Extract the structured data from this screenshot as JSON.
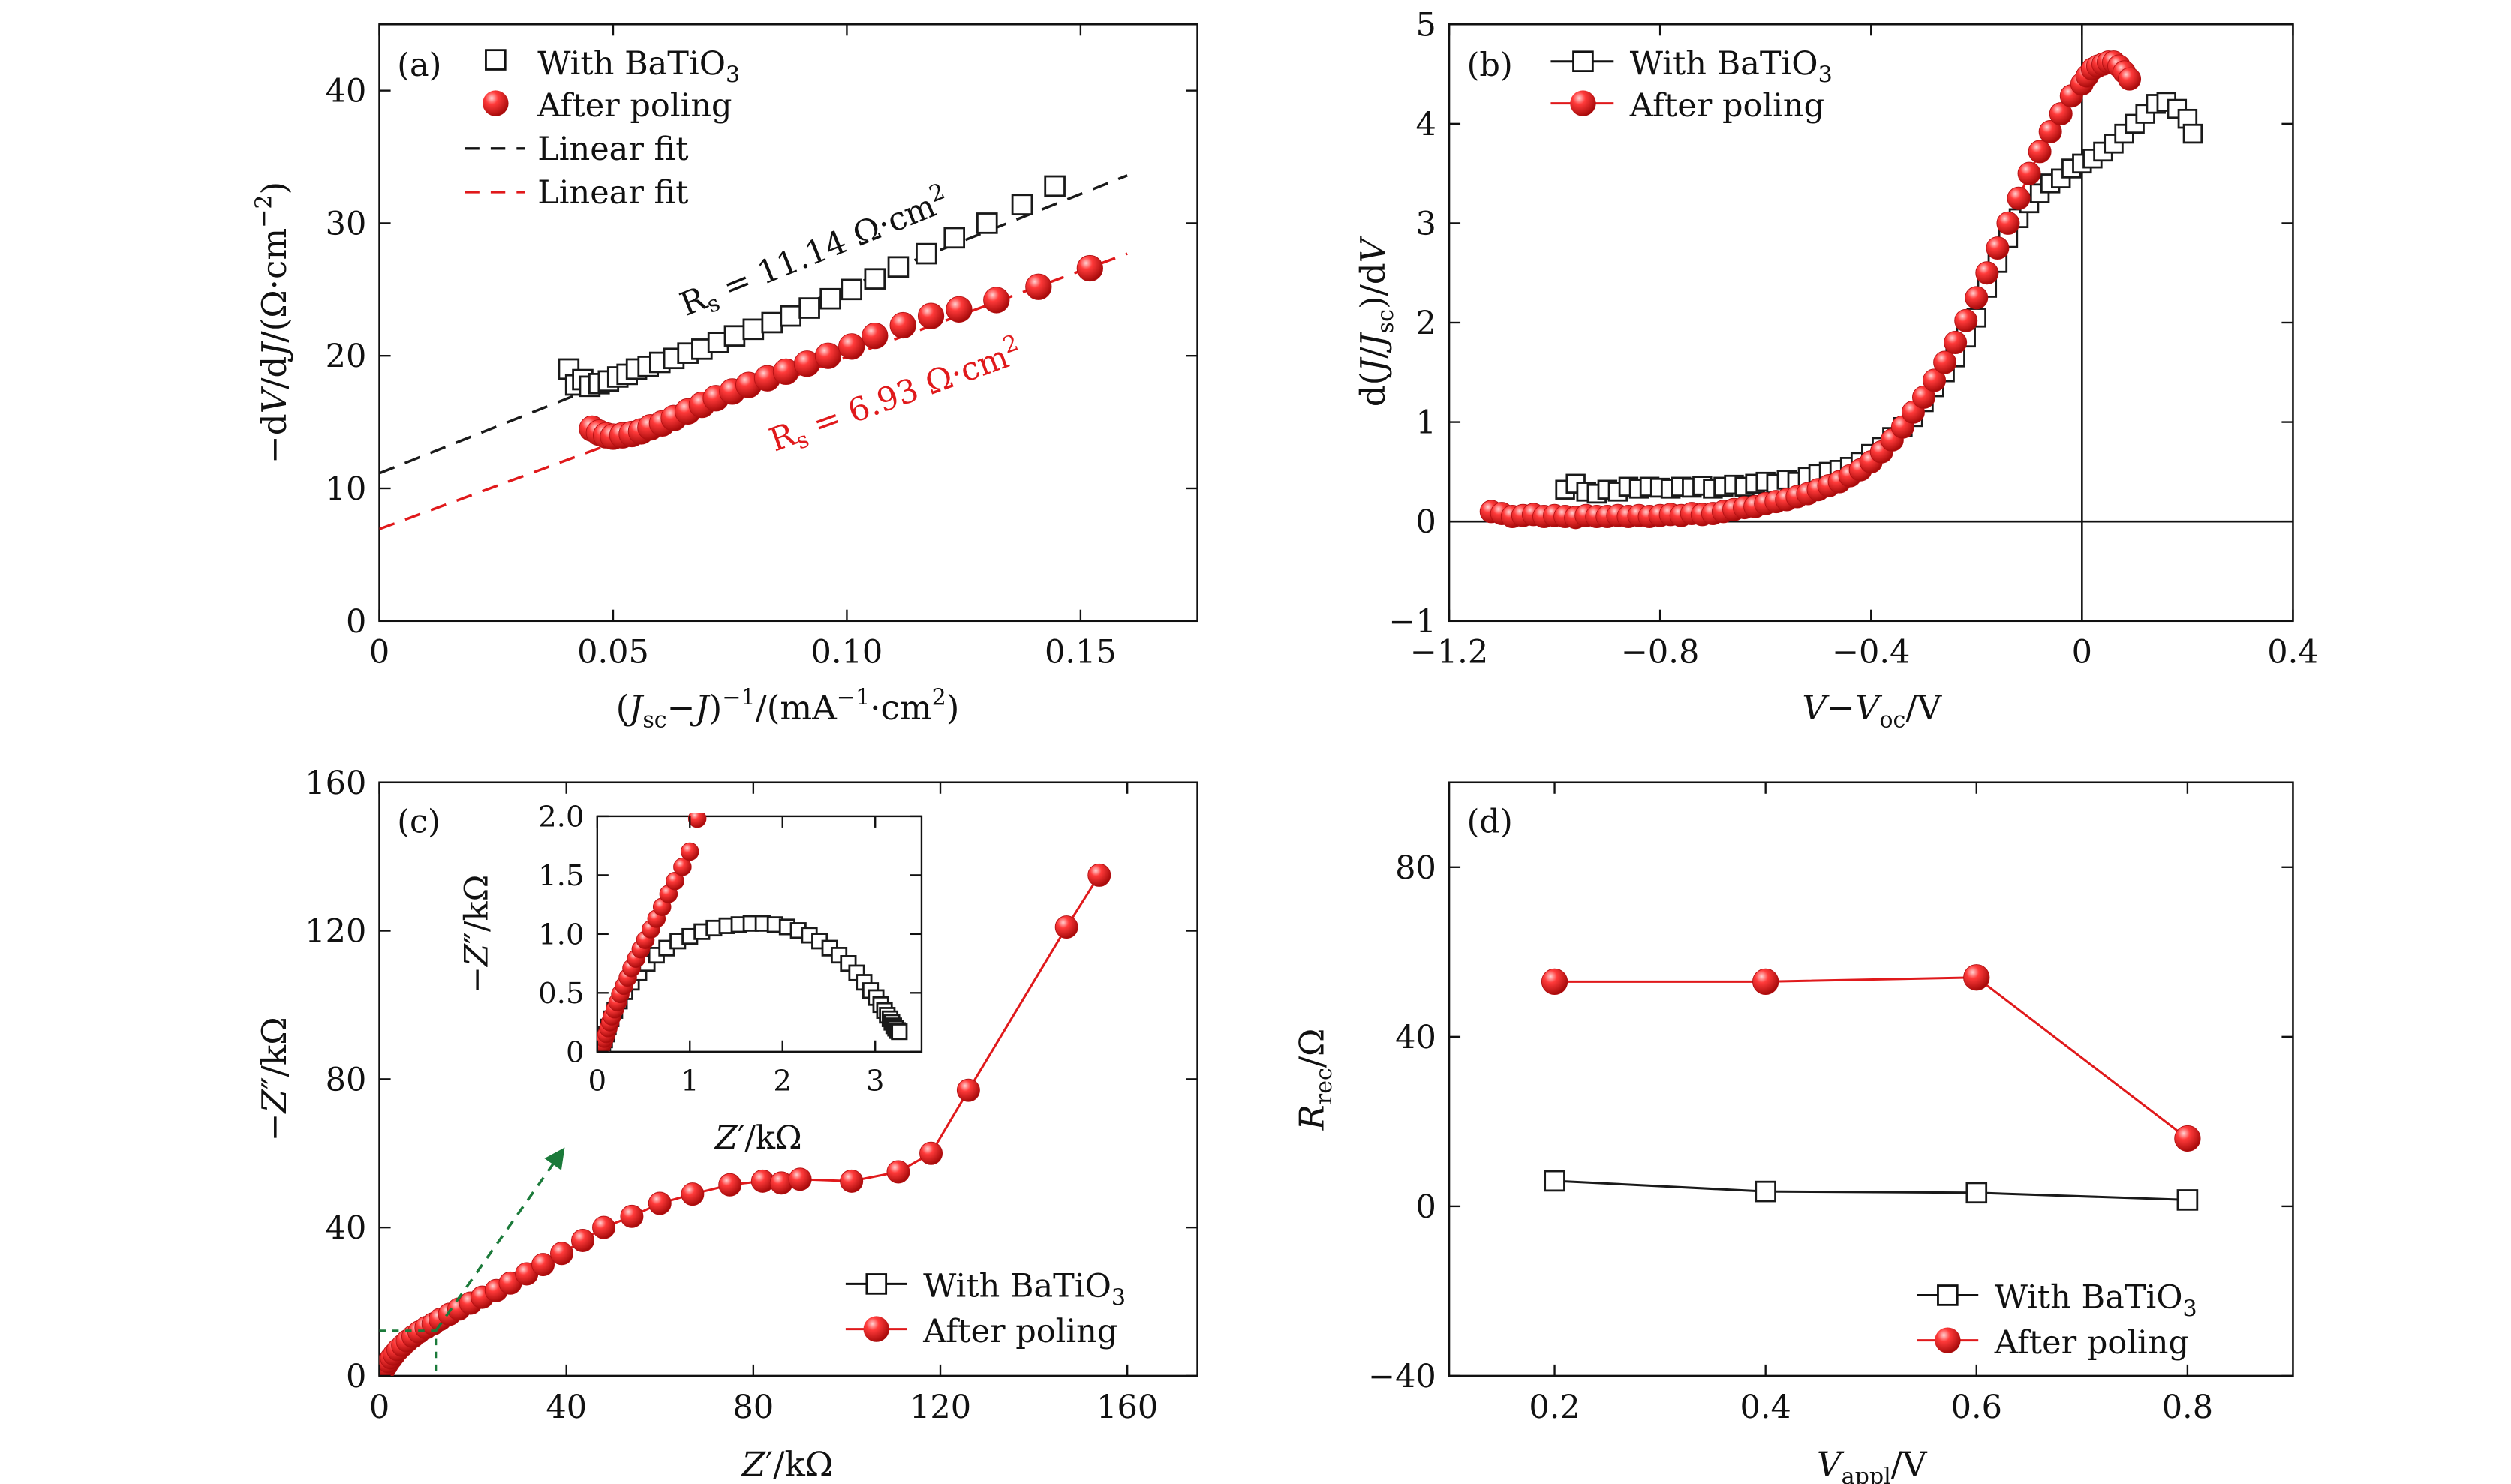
{
  "colors": {
    "black": "#1a1a1a",
    "red": "#e0191b",
    "red_dark": "#b30f12",
    "green": "#1b7a3a"
  },
  "panels": [
    {
      "id": "a",
      "tag": "(a)",
      "xlabel": "(J_sc − J)^−1/(mA^−1·cm^2)",
      "ylabel": "−dV/dJ/(Ω·cm^−2)",
      "xlim": [
        0,
        0.175
      ],
      "ylim": [
        0,
        45
      ],
      "xticks": [
        0,
        0.05,
        0.1,
        0.15
      ],
      "xticklabels": [
        "0",
        "0.05",
        "0.10",
        "0.15"
      ],
      "yticks": [
        0,
        10,
        20,
        30,
        40
      ],
      "yticklabels": [
        "0",
        "10",
        "20",
        "30",
        "40"
      ],
      "legend": [
        "With BaTiO3",
        "After poling",
        "Linear fit",
        "Linear fit"
      ],
      "annotations": [
        "Rs = 11.14 Ω·cm²",
        "Rs = 6.93 Ω·cm²"
      ]
    },
    {
      "id": "b",
      "tag": "(b)",
      "xlabel": "V − V_oc/V",
      "ylabel": "d(J/J_sc)/dV",
      "xlim": [
        -1.2,
        0.4
      ],
      "ylim": [
        -1,
        5
      ],
      "xticks": [
        -1.2,
        -0.8,
        -0.4,
        0,
        0.4
      ],
      "xticklabels": [
        "−1.2",
        "−0.8",
        "−0.4",
        "0",
        "0.4"
      ],
      "yticks": [
        -1,
        0,
        1,
        2,
        3,
        4,
        5
      ],
      "yticklabels": [
        "−1",
        "0",
        "1",
        "2",
        "3",
        "4",
        "5"
      ],
      "legend": [
        "With BaTiO3",
        "After poling"
      ]
    },
    {
      "id": "c",
      "tag": "(c)",
      "xlabel": "Z′/kΩ",
      "ylabel": "−Z″/kΩ",
      "xlim": [
        0,
        175
      ],
      "ylim": [
        0,
        160
      ],
      "xticks": [
        0,
        40,
        80,
        120,
        160
      ],
      "xticklabels": [
        "0",
        "40",
        "80",
        "120",
        "160"
      ],
      "yticks": [
        0,
        40,
        80,
        120,
        160
      ],
      "yticklabels": [
        "0",
        "40",
        "80",
        "120",
        "160"
      ],
      "legend": [
        "With BaTiO3",
        "After poling"
      ],
      "inset": {
        "xlabel": "Z′/kΩ",
        "ylabel": "−Z″/kΩ",
        "xlim": [
          0,
          3.5
        ],
        "ylim": [
          0,
          2.0
        ],
        "xticks": [
          0,
          1,
          2,
          3
        ],
        "xticklabels": [
          "0",
          "1",
          "2",
          "3"
        ],
        "yticks": [
          0,
          0.5,
          1.0,
          1.5,
          2.0
        ],
        "yticklabels": [
          "0",
          "0.5",
          "1.0",
          "1.5",
          "2.0"
        ]
      }
    },
    {
      "id": "d",
      "tag": "(d)",
      "xlabel": "V_appl/V",
      "ylabel": "R_rec/Ω",
      "xlim": [
        0.1,
        0.9
      ],
      "ylim": [
        -40,
        100
      ],
      "xticks": [
        0.2,
        0.4,
        0.6,
        0.8
      ],
      "xticklabels": [
        "0.2",
        "0.4",
        "0.6",
        "0.8"
      ],
      "yticks": [
        -40,
        0,
        40,
        80
      ],
      "yticklabels": [
        "−40",
        "0",
        "40",
        "80"
      ],
      "legend": [
        "With BaTiO3",
        "After poling"
      ]
    }
  ],
  "chart_data": [
    {
      "type": "scatter",
      "panel": "a",
      "title": "(a)",
      "xlabel": "(Jsc−J)^−1/(mA^−1·cm^2)",
      "ylabel": "−dV/dJ/(Ω·cm^−2)",
      "xlim": [
        0,
        0.175
      ],
      "ylim": [
        0,
        45
      ],
      "series": [
        {
          "name": "With BaTiO3",
          "marker": "square",
          "x": [
            0.0405,
            0.042,
            0.0435,
            0.045,
            0.047,
            0.049,
            0.051,
            0.053,
            0.055,
            0.0575,
            0.06,
            0.063,
            0.066,
            0.069,
            0.0725,
            0.076,
            0.08,
            0.084,
            0.088,
            0.092,
            0.0965,
            0.101,
            0.106,
            0.111,
            0.117,
            0.123,
            0.13,
            0.1375,
            0.1445
          ],
          "y": [
            19.0,
            17.8,
            18.2,
            17.7,
            17.9,
            18.1,
            18.4,
            18.6,
            19.0,
            19.2,
            19.5,
            19.8,
            20.2,
            20.5,
            21.0,
            21.5,
            22.0,
            22.5,
            23.0,
            23.6,
            24.3,
            25.0,
            25.8,
            26.7,
            27.7,
            28.9,
            30.0,
            31.4,
            32.8
          ]
        },
        {
          "name": "After poling",
          "marker": "sphere",
          "x": [
            0.0455,
            0.047,
            0.0485,
            0.05,
            0.052,
            0.054,
            0.056,
            0.058,
            0.0605,
            0.063,
            0.066,
            0.069,
            0.072,
            0.0755,
            0.079,
            0.083,
            0.087,
            0.0915,
            0.096,
            0.101,
            0.106,
            0.112,
            0.118,
            0.124,
            0.132,
            0.141,
            0.152
          ],
          "y": [
            14.5,
            14.2,
            14.0,
            13.9,
            14.0,
            14.1,
            14.3,
            14.6,
            14.9,
            15.3,
            15.8,
            16.3,
            16.8,
            17.3,
            17.8,
            18.3,
            18.8,
            19.4,
            20.0,
            20.7,
            21.5,
            22.3,
            23.0,
            23.5,
            24.2,
            25.2,
            26.6
          ]
        },
        {
          "name": "Linear fit",
          "style": "dashed",
          "color": "black",
          "x": [
            0,
            0.16
          ],
          "y": [
            11.14,
            33.6
          ]
        },
        {
          "name": "Linear fit",
          "style": "dashed",
          "color": "red",
          "x": [
            0,
            0.16
          ],
          "y": [
            6.93,
            27.7
          ]
        }
      ]
    },
    {
      "type": "line",
      "panel": "b",
      "title": "(b)",
      "xlabel": "V−Voc/V",
      "ylabel": "d(J/Jsc)/dV",
      "xlim": [
        -1.2,
        0.4
      ],
      "ylim": [
        -1,
        5
      ],
      "reference_lines": {
        "x": 0,
        "y": 0
      },
      "series": [
        {
          "name": "With BaTiO3",
          "marker": "square",
          "x": [
            -0.98,
            -0.96,
            -0.94,
            -0.92,
            -0.9,
            -0.88,
            -0.86,
            -0.84,
            -0.82,
            -0.8,
            -0.78,
            -0.76,
            -0.74,
            -0.72,
            -0.7,
            -0.68,
            -0.66,
            -0.64,
            -0.62,
            -0.6,
            -0.58,
            -0.56,
            -0.54,
            -0.52,
            -0.5,
            -0.48,
            -0.46,
            -0.44,
            -0.42,
            -0.4,
            -0.38,
            -0.36,
            -0.34,
            -0.32,
            -0.3,
            -0.28,
            -0.26,
            -0.24,
            -0.22,
            -0.2,
            -0.18,
            -0.16,
            -0.14,
            -0.12,
            -0.1,
            -0.08,
            -0.06,
            -0.04,
            -0.02,
            0.0,
            0.02,
            0.04,
            0.06,
            0.08,
            0.1,
            0.12,
            0.14,
            0.16,
            0.18,
            0.2,
            0.21
          ],
          "y": [
            0.32,
            0.38,
            0.3,
            0.28,
            0.32,
            0.3,
            0.35,
            0.33,
            0.35,
            0.34,
            0.33,
            0.35,
            0.34,
            0.36,
            0.33,
            0.35,
            0.37,
            0.35,
            0.38,
            0.4,
            0.38,
            0.42,
            0.4,
            0.45,
            0.48,
            0.5,
            0.52,
            0.55,
            0.6,
            0.68,
            0.75,
            0.85,
            0.95,
            1.05,
            1.2,
            1.35,
            1.5,
            1.65,
            1.85,
            2.05,
            2.35,
            2.6,
            2.85,
            3.05,
            3.2,
            3.3,
            3.4,
            3.45,
            3.55,
            3.6,
            3.65,
            3.72,
            3.8,
            3.9,
            4.0,
            4.1,
            4.2,
            4.22,
            4.15,
            4.05,
            3.9
          ]
        },
        {
          "name": "After poling",
          "marker": "sphere",
          "x": [
            -1.12,
            -1.1,
            -1.08,
            -1.06,
            -1.04,
            -1.02,
            -1.0,
            -0.98,
            -0.96,
            -0.94,
            -0.92,
            -0.9,
            -0.88,
            -0.86,
            -0.84,
            -0.82,
            -0.8,
            -0.78,
            -0.76,
            -0.74,
            -0.72,
            -0.7,
            -0.68,
            -0.66,
            -0.64,
            -0.62,
            -0.6,
            -0.58,
            -0.56,
            -0.54,
            -0.52,
            -0.5,
            -0.48,
            -0.46,
            -0.44,
            -0.42,
            -0.4,
            -0.38,
            -0.36,
            -0.34,
            -0.32,
            -0.3,
            -0.28,
            -0.26,
            -0.24,
            -0.22,
            -0.2,
            -0.18,
            -0.16,
            -0.14,
            -0.12,
            -0.1,
            -0.08,
            -0.06,
            -0.04,
            -0.02,
            0.0,
            0.01,
            0.02,
            0.03,
            0.04,
            0.05,
            0.06,
            0.07,
            0.08,
            0.09
          ],
          "y": [
            0.1,
            0.08,
            0.05,
            0.06,
            0.07,
            0.05,
            0.06,
            0.05,
            0.04,
            0.06,
            0.05,
            0.05,
            0.06,
            0.05,
            0.06,
            0.05,
            0.06,
            0.07,
            0.06,
            0.08,
            0.07,
            0.08,
            0.1,
            0.12,
            0.14,
            0.15,
            0.18,
            0.2,
            0.22,
            0.25,
            0.28,
            0.32,
            0.36,
            0.4,
            0.46,
            0.52,
            0.6,
            0.7,
            0.82,
            0.95,
            1.1,
            1.25,
            1.42,
            1.6,
            1.8,
            2.02,
            2.25,
            2.5,
            2.75,
            3.0,
            3.25,
            3.5,
            3.72,
            3.92,
            4.1,
            4.28,
            4.4,
            4.48,
            4.55,
            4.58,
            4.6,
            4.62,
            4.62,
            4.58,
            4.52,
            4.45
          ]
        }
      ]
    },
    {
      "type": "scatter",
      "panel": "c",
      "title": "(c)",
      "xlabel": "Z′/kΩ",
      "ylabel": "−Z″/kΩ",
      "xlim": [
        0,
        175
      ],
      "ylim": [
        0,
        160
      ],
      "series": [
        {
          "name": "After poling",
          "marker": "sphere",
          "x": [
            0.5,
            1.0,
            1.5,
            2.0,
            2.6,
            3.2,
            4.0,
            5.0,
            6.0,
            7.2,
            8.5,
            10.0,
            11.5,
            13.0,
            15.0,
            17.0,
            19.5,
            22.0,
            25.0,
            28.0,
            31.5,
            35.0,
            39.0,
            43.5,
            48.0,
            54.0,
            60.0,
            67.0,
            75.0,
            82.0,
            86.0,
            90.0,
            101.0,
            111.0,
            118.0,
            126.0,
            147.0,
            154.0
          ],
          "y": [
            0.8,
            1.8,
            2.8,
            3.8,
            4.8,
            5.8,
            7.0,
            8.2,
            9.4,
            10.6,
            11.8,
            13.0,
            14.0,
            15.2,
            16.6,
            18.0,
            19.6,
            21.2,
            23.0,
            25.0,
            27.5,
            30.0,
            33.0,
            36.5,
            40.0,
            43.0,
            46.5,
            49.0,
            51.5,
            52.5,
            52.0,
            53.0,
            52.5,
            55.0,
            60.0,
            77.0,
            121.0,
            135.0
          ]
        },
        {
          "name": "With BaTiO3",
          "marker": "square",
          "note": "visible in inset only",
          "x": [],
          "y": []
        }
      ]
    },
    {
      "type": "scatter",
      "panel": "c-inset",
      "title": "",
      "xlabel": "Z′/kΩ",
      "ylabel": "−Z″/kΩ",
      "xlim": [
        0,
        3.5
      ],
      "ylim": [
        0,
        2.0
      ],
      "series": [
        {
          "name": "With BaTiO3",
          "marker": "square",
          "x": [
            0.06,
            0.08,
            0.1,
            0.12,
            0.15,
            0.19,
            0.24,
            0.3,
            0.37,
            0.45,
            0.54,
            0.64,
            0.75,
            0.87,
            1.0,
            1.13,
            1.26,
            1.4,
            1.53,
            1.66,
            1.79,
            1.92,
            2.05,
            2.17,
            2.29,
            2.4,
            2.51,
            2.61,
            2.71,
            2.8,
            2.88,
            2.95,
            3.01,
            3.06,
            3.1,
            3.13,
            3.16,
            3.18,
            3.2,
            3.22,
            3.24,
            3.26
          ],
          "y": [
            0.05,
            0.1,
            0.15,
            0.21,
            0.28,
            0.35,
            0.43,
            0.51,
            0.59,
            0.67,
            0.75,
            0.82,
            0.88,
            0.94,
            0.98,
            1.02,
            1.05,
            1.07,
            1.08,
            1.09,
            1.09,
            1.08,
            1.06,
            1.03,
            0.99,
            0.94,
            0.88,
            0.82,
            0.75,
            0.67,
            0.59,
            0.52,
            0.46,
            0.4,
            0.35,
            0.31,
            0.28,
            0.25,
            0.22,
            0.2,
            0.18,
            0.17
          ]
        },
        {
          "name": "After poling",
          "marker": "sphere",
          "x": [
            0.04,
            0.06,
            0.08,
            0.1,
            0.12,
            0.14,
            0.16,
            0.19,
            0.22,
            0.25,
            0.29,
            0.33,
            0.37,
            0.42,
            0.47,
            0.52,
            0.58,
            0.64,
            0.7,
            0.77,
            0.84,
            0.92,
            1.0,
            1.08
          ],
          "y": [
            0.03,
            0.07,
            0.11,
            0.15,
            0.2,
            0.25,
            0.3,
            0.36,
            0.42,
            0.49,
            0.56,
            0.63,
            0.71,
            0.79,
            0.87,
            0.95,
            1.04,
            1.13,
            1.23,
            1.34,
            1.45,
            1.57,
            1.7,
            1.98
          ]
        }
      ]
    },
    {
      "type": "line",
      "panel": "d",
      "title": "(d)",
      "xlabel": "Vappl/V",
      "ylabel": "Rrec/Ω",
      "xlim": [
        0.1,
        0.9
      ],
      "ylim": [
        -40,
        100
      ],
      "series": [
        {
          "name": "With BaTiO3",
          "marker": "square",
          "x": [
            0.2,
            0.4,
            0.6,
            0.8
          ],
          "y": [
            6.0,
            3.5,
            3.2,
            1.5
          ]
        },
        {
          "name": "After poling",
          "marker": "sphere",
          "x": [
            0.2,
            0.4,
            0.6,
            0.8
          ],
          "y": [
            53.0,
            53.0,
            54.0,
            16.0
          ]
        }
      ]
    }
  ]
}
